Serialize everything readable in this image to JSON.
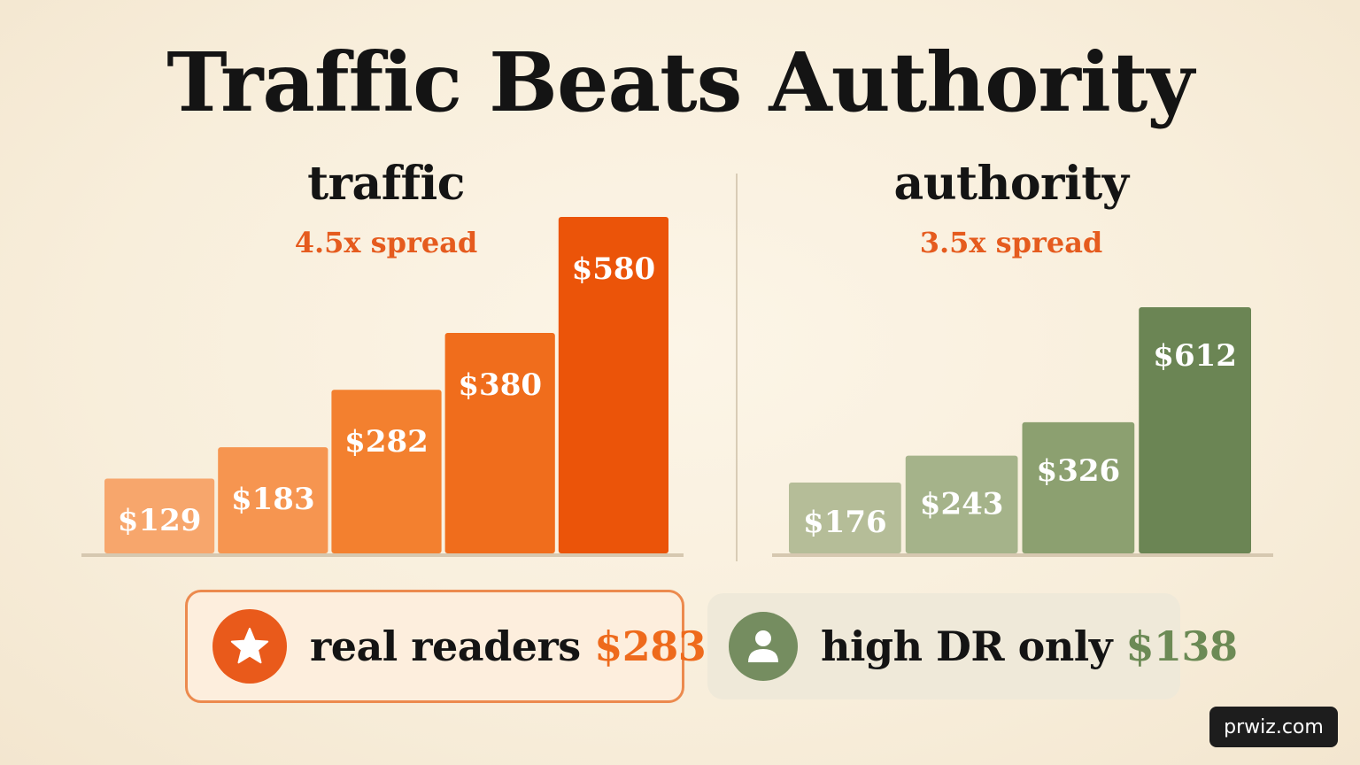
{
  "title": "Traffic Beats Authority",
  "panels": {
    "traffic": {
      "title": "traffic",
      "subtitle": "4.5x spread"
    },
    "authority": {
      "title": "authority",
      "subtitle": "3.5x spread"
    }
  },
  "chart_data": [
    {
      "type": "bar",
      "title": "traffic",
      "subtitle": "4.5x spread",
      "values": [
        129,
        183,
        282,
        380,
        580
      ],
      "labels": [
        "$129",
        "$183",
        "$282",
        "$380",
        "$580"
      ],
      "ylim": [
        0,
        580
      ],
      "colors": [
        "#f7a66c",
        "#f69550",
        "#f3802f",
        "#f06d1c",
        "#eb5409"
      ]
    },
    {
      "type": "bar",
      "title": "authority",
      "subtitle": "3.5x spread",
      "values": [
        176,
        243,
        326,
        612
      ],
      "labels": [
        "$176",
        "$243",
        "$326",
        "$612"
      ],
      "ylim": [
        0,
        612
      ],
      "colors": [
        "#b5bd98",
        "#a5b38a",
        "#8ca070",
        "#6b8554"
      ]
    }
  ],
  "summary": {
    "readers": {
      "label": "real readers",
      "value": "$283",
      "icon": "star-icon",
      "accent": "#ee6a1c"
    },
    "dr": {
      "label": "high DR only",
      "value": "$138",
      "icon": "person-icon",
      "accent": "#6c8a55"
    }
  },
  "watermark": "prwiz.com"
}
